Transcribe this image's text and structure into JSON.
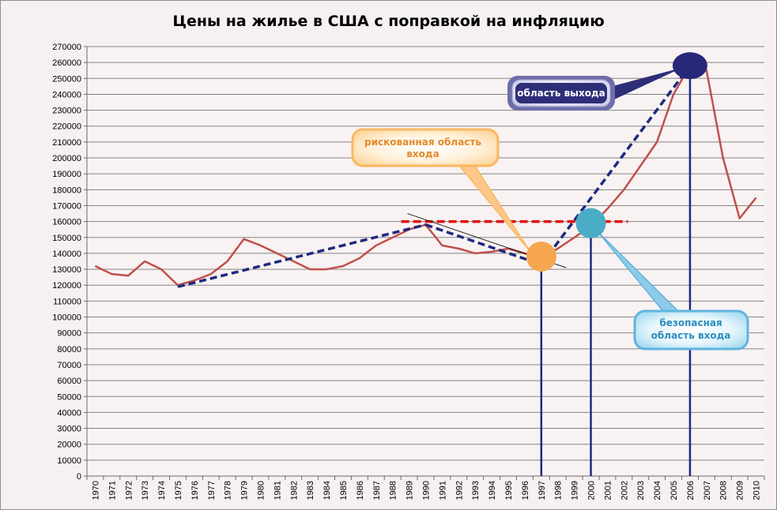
{
  "chart_data": {
    "type": "line",
    "title": "Цены на жилье в США с поправкой на инфляцию",
    "xlabel": "",
    "ylabel": "",
    "ylim": [
      0,
      270000
    ],
    "yticks": [
      0,
      10000,
      20000,
      30000,
      40000,
      50000,
      60000,
      70000,
      80000,
      90000,
      100000,
      110000,
      120000,
      130000,
      140000,
      150000,
      160000,
      170000,
      180000,
      190000,
      200000,
      210000,
      220000,
      230000,
      240000,
      250000,
      260000,
      270000
    ],
    "categories": [
      "1970",
      "1971",
      "1972",
      "1973",
      "1974",
      "1975",
      "1976",
      "1977",
      "1978",
      "1979",
      "1980",
      "1981",
      "1982",
      "1983",
      "1984",
      "1985",
      "1986",
      "1987",
      "1988",
      "1989",
      "1990",
      "1991",
      "1992",
      "1993",
      "1994",
      "1995",
      "1996",
      "1997",
      "1998",
      "1999",
      "2000",
      "2001",
      "2002",
      "2003",
      "2004",
      "2005",
      "2006",
      "2007",
      "2008",
      "2009",
      "2010"
    ],
    "series": [
      {
        "name": "",
        "color": "#c0504d",
        "values": [
          132000,
          127000,
          126000,
          135000,
          130000,
          120000,
          123000,
          127000,
          135000,
          149000,
          145000,
          140000,
          135000,
          130000,
          130000,
          132000,
          137000,
          145000,
          150000,
          155000,
          158000,
          145000,
          143000,
          140000,
          141000,
          143000,
          140000,
          137000,
          143000,
          150000,
          157000,
          168000,
          180000,
          195000,
          210000,
          240000,
          258000,
          255000,
          200000,
          162000,
          175000
        ]
      }
    ],
    "grid": true,
    "legend": "none",
    "annotations": {
      "trend_up": {
        "color": "#1f2a80",
        "points": [
          [
            "1975",
            119000
          ],
          [
            "1990",
            158000
          ]
        ]
      },
      "trend_down": {
        "color": "#1f2a80",
        "points": [
          [
            "1990",
            158000
          ],
          [
            "1997",
            133000
          ]
        ]
      },
      "trend_exit": {
        "color": "#1f2a80",
        "points": [
          [
            "1997",
            133000
          ],
          [
            "2006",
            258000
          ]
        ]
      },
      "thin_line": {
        "color": "#000000",
        "points": [
          [
            "1988.9",
            165000
          ],
          [
            "1998.5",
            131000
          ]
        ]
      },
      "resistance": {
        "color": "#e01010",
        "points": [
          [
            "1989",
            160000
          ],
          [
            "2002",
            160000
          ]
        ]
      },
      "vlines": [
        {
          "year": "1997",
          "from": 133000,
          "color": "#1f2a80"
        },
        {
          "year": "2000",
          "from": 150000,
          "color": "#1f2a80"
        },
        {
          "year": "2006",
          "from": 258000,
          "color": "#1f2a80"
        }
      ],
      "markers": [
        {
          "id": "risky",
          "year": "1997",
          "value": 138000,
          "color": "#f7a650"
        },
        {
          "id": "safe",
          "year": "2000",
          "value": 159000,
          "color": "#4bacc6"
        },
        {
          "id": "exit",
          "year": "2006",
          "value": 258000,
          "color": "#28287a"
        }
      ],
      "callouts": {
        "exit": {
          "text": "область выхода",
          "fill": "#2e2e78",
          "border": "#6e6eaa",
          "text_color": "#ffffff"
        },
        "risky": {
          "line1": "рискованная область",
          "line2": "входа",
          "fill": "#fde5bf",
          "border": "#fab760",
          "text_color": "#e28a2f"
        },
        "safe": {
          "line1": "безопасная",
          "line2": "область входа",
          "fill": "#cfeaf7",
          "border": "#5fb4de",
          "text_color": "#2b8dbf"
        }
      }
    }
  }
}
